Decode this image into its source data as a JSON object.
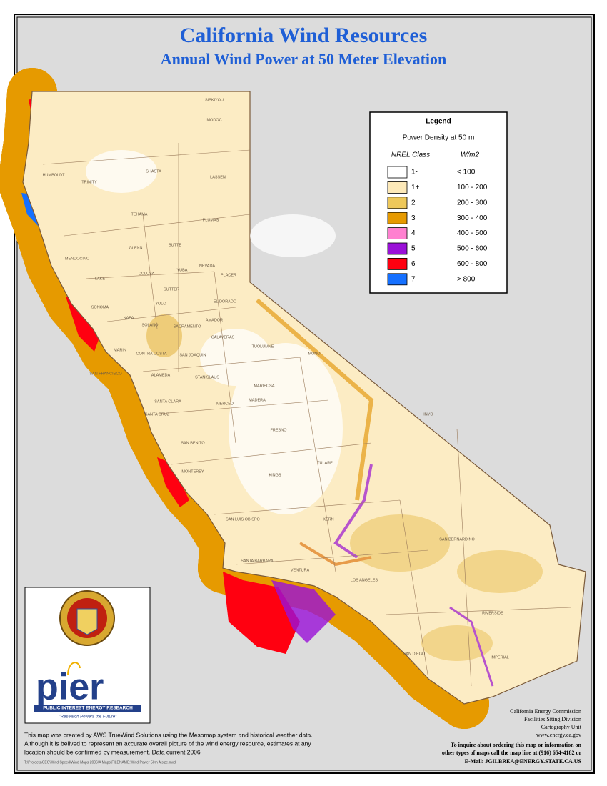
{
  "header": {
    "title": "California Wind Resources",
    "subtitle": "Annual Wind Power at 50 Meter Elevation"
  },
  "legend": {
    "title": "Legend",
    "subtitle": "Power Density at 50 m",
    "class_header": "NREL Class",
    "unit_header": "W/m2",
    "items": [
      {
        "class": "1-",
        "range": "< 100",
        "color": "#ffffff"
      },
      {
        "class": "1+",
        "range": "100 - 200",
        "color": "#fde9b8"
      },
      {
        "class": "2",
        "range": "200 - 300",
        "color": "#eec85a"
      },
      {
        "class": "3",
        "range": "300 - 400",
        "color": "#e69a00"
      },
      {
        "class": "4",
        "range": "400 - 500",
        "color": "#ff80d0"
      },
      {
        "class": "5",
        "range": "500 - 600",
        "color": "#9a10d8"
      },
      {
        "class": "6",
        "range": "600 - 800",
        "color": "#ff0010"
      },
      {
        "class": "7",
        "range": "> 800",
        "color": "#1570ff"
      }
    ]
  },
  "counties": [
    "SISKIYOU",
    "MODOC",
    "HUMBOLDT",
    "TRINITY",
    "SHASTA",
    "LASSEN",
    "TEHAMA",
    "PLUMAS",
    "MENDOCINO",
    "GLENN",
    "BUTTE",
    "COLUSA",
    "NEVADA",
    "LAKE",
    "YUBA",
    "PLACER",
    "SUTTER",
    "SONOMA",
    "YOLO",
    "EL DORADO",
    "NAPA",
    "SACRAMENTO",
    "AMADOR",
    "SOLANO",
    "CALAVERAS",
    "MARIN",
    "CONTRA COSTA",
    "SAN JOAQUIN",
    "TUOLUMNE",
    "MONO",
    "SAN FRANCISCO",
    "ALAMEDA",
    "STANISLAUS",
    "MARIPOSA",
    "SANTA CLARA",
    "SANTA CRUZ",
    "MERCED",
    "MADERA",
    "SAN BENITO",
    "FRESNO",
    "MONTEREY",
    "TULARE",
    "KINGS",
    "INYO",
    "SAN LUIS OBISPO",
    "KERN",
    "SANTA BARBARA",
    "SAN BERNARDINO",
    "VENTURA",
    "LOS ANGELES",
    "RIVERSIDE",
    "SAN DIEGO",
    "IMPERIAL"
  ],
  "logo": {
    "name": "pier",
    "banner": "PUBLIC INTEREST ENERGY RESEARCH",
    "tagline": "\"Research Powers the Future\""
  },
  "note": [
    "This map was created by AWS TrueWind Solutions using the Mesomap system and historical weather data.",
    "Although it is belived to represent an accurate overall picture of the wind energy resource, estimates at any",
    "location should be confirmed by measurement. Data current 2006"
  ],
  "file_path": "T:\\Projects\\CEC\\Wind Speed\\Wind Maps 2006\\A Maps\\FILENAME:Wind Power 50m A size.mxd",
  "credits": [
    "California Energy Commission",
    "Facilities Siting Division",
    "Cartography Unit",
    "www.energy.ca.gov",
    "To inquire about ordering this map or information on",
    "other types of maps call the map line at (916) 654-4182 or",
    "E-Mail: JGILBREA@ENERGY.STATE.CA.US"
  ]
}
